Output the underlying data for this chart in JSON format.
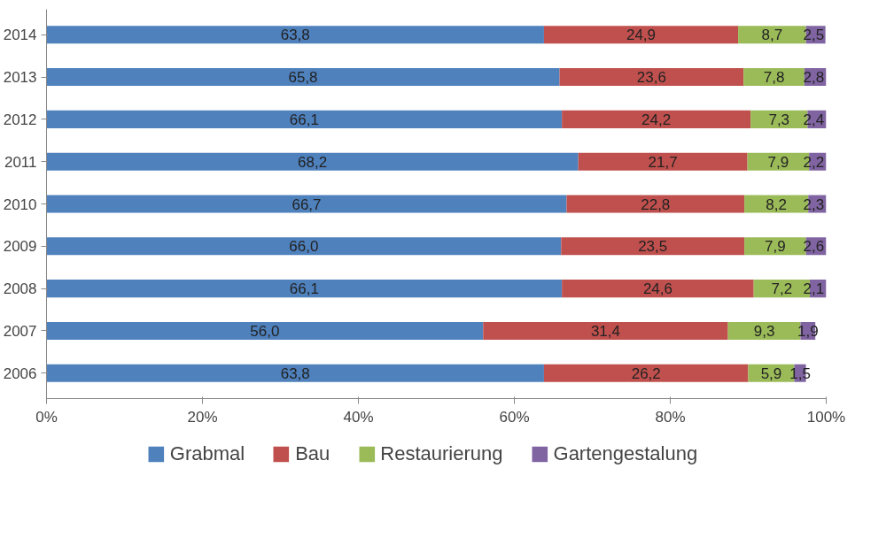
{
  "chart_data": {
    "type": "bar",
    "orientation": "horizontal",
    "stacked": true,
    "categories": [
      "2014",
      "2013",
      "2012",
      "2011",
      "2010",
      "2009",
      "2008",
      "2007",
      "2006"
    ],
    "series": [
      {
        "name": "Grabmal",
        "color": "#4f81bd",
        "values": [
          63.8,
          65.8,
          66.1,
          68.2,
          66.7,
          66.0,
          66.1,
          56.0,
          63.8
        ],
        "value_labels": [
          "63,8",
          "65,8",
          "66,1",
          "68,2",
          "66,7",
          "66,0",
          "66,1",
          "56,0",
          "63,8"
        ]
      },
      {
        "name": "Bau",
        "color": "#c0504d",
        "values": [
          24.9,
          23.6,
          24.2,
          21.7,
          22.8,
          23.5,
          24.6,
          31.4,
          26.2
        ],
        "value_labels": [
          "24,9",
          "23,6",
          "24,2",
          "21,7",
          "22,8",
          "23,5",
          "24,6",
          "31,4",
          "26,2"
        ]
      },
      {
        "name": "Restaurierung",
        "color": "#9bbb59",
        "values": [
          8.7,
          7.8,
          7.3,
          7.9,
          8.2,
          7.9,
          7.2,
          9.3,
          5.9
        ],
        "value_labels": [
          "8,7",
          "7,8",
          "7,3",
          "7,9",
          "8,2",
          "7,9",
          "7,2",
          "9,3",
          "5,9"
        ]
      },
      {
        "name": "Gartengestalung",
        "color": "#8064a2",
        "values": [
          2.5,
          2.8,
          2.4,
          2.2,
          2.3,
          2.6,
          2.1,
          1.9,
          1.5
        ],
        "value_labels": [
          "2,5",
          "2,8",
          "2,4",
          "2,2",
          "2,3",
          "2,6",
          "2,1",
          "1,9",
          "1,5"
        ]
      }
    ],
    "xlim": [
      0,
      100
    ],
    "xticks": [
      {
        "value": 0,
        "label": "0%"
      },
      {
        "value": 20,
        "label": "20%"
      },
      {
        "value": 40,
        "label": "40%"
      },
      {
        "value": 60,
        "label": "60%"
      },
      {
        "value": 80,
        "label": "80%"
      },
      {
        "value": 100,
        "label": "100%"
      }
    ],
    "grid": false,
    "legend": "bottom"
  }
}
